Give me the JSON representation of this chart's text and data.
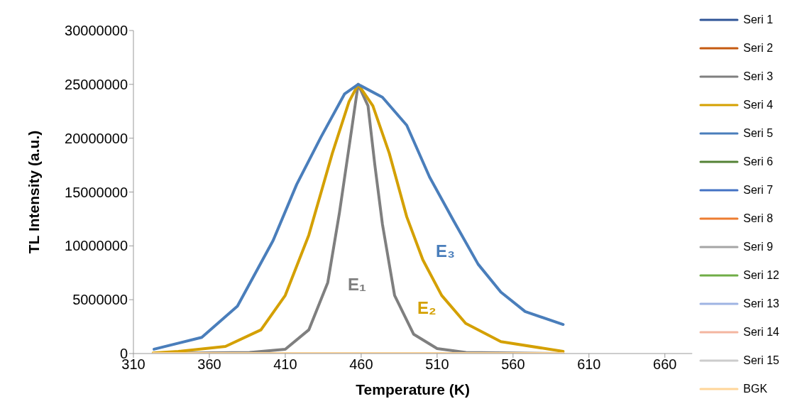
{
  "chart_data": {
    "type": "line",
    "xlabel": "Temperature (K)",
    "ylabel": "TL Intensity (a.u.)",
    "xlim": [
      310,
      678
    ],
    "xticks": [
      310,
      360,
      410,
      460,
      510,
      560,
      610,
      660
    ],
    "ylim": [
      0,
      30000000
    ],
    "yticks": [
      0,
      5000000,
      10000000,
      15000000,
      20000000,
      25000000,
      30000000
    ],
    "grid": false,
    "legend": "right",
    "marker": "none",
    "line_style": "solid",
    "series": [
      {
        "name": "Seri 1",
        "color": "#2f5597"
      },
      {
        "name": "Seri 2",
        "color": "#c55a11"
      },
      {
        "name": "Seri 3",
        "color": "#7f7f7f",
        "x": [
          323,
          386.5,
          410,
          425.5,
          438,
          445.7,
          453.7,
          458,
          464.5,
          469,
          474,
          482,
          494.5,
          510,
          529,
          593
        ],
        "values": [
          0,
          100000,
          400000,
          2200000,
          6600000,
          13100000,
          20800000,
          25000000,
          23000000,
          17500000,
          12000000,
          5400000,
          1800000,
          460000,
          100000,
          0
        ]
      },
      {
        "name": "Seri 4",
        "color": "#d4a000",
        "x": [
          323,
          339.6,
          370.6,
          394,
          410,
          425.5,
          441,
          452,
          458,
          467.7,
          478.5,
          490,
          500.6,
          513,
          528.8,
          552,
          593
        ],
        "values": [
          50000,
          200000,
          660000,
          2200000,
          5400000,
          11000000,
          18600000,
          23400000,
          25000000,
          23000000,
          18600000,
          12700000,
          8700000,
          5400000,
          2800000,
          1100000,
          200000
        ]
      },
      {
        "name": "Seri 5",
        "color": "#4a7ebb",
        "x": [
          323.6,
          355,
          378.5,
          402,
          417.5,
          433.5,
          449,
          458,
          474,
          490,
          505,
          521,
          537,
          552,
          568,
          593
        ],
        "values": [
          400000,
          1500000,
          4400000,
          10500000,
          15700000,
          20100000,
          24100000,
          25000000,
          23800000,
          21200000,
          16400000,
          12300000,
          8300000,
          5700000,
          3900000,
          2700000
        ]
      },
      {
        "name": "Seri 6",
        "color": "#548235"
      },
      {
        "name": "Seri 7",
        "color": "#4472c4"
      },
      {
        "name": "Seri 8",
        "color": "#ed7d31"
      },
      {
        "name": "Seri 9",
        "color": "#a5a5a5"
      },
      {
        "name": "Seri 12",
        "color": "#70ad47"
      },
      {
        "name": "Seri 13",
        "color": "#9fb4e3"
      },
      {
        "name": "Seri 14",
        "color": "#f4b6a0"
      },
      {
        "name": "Seri 15",
        "color": "#cccccc"
      },
      {
        "name": "BGK",
        "color": "#ffd699",
        "x": [
          323,
          593
        ],
        "values": [
          0,
          0
        ]
      }
    ],
    "annotations": [
      "E₁",
      "E₂",
      "E₃"
    ]
  }
}
